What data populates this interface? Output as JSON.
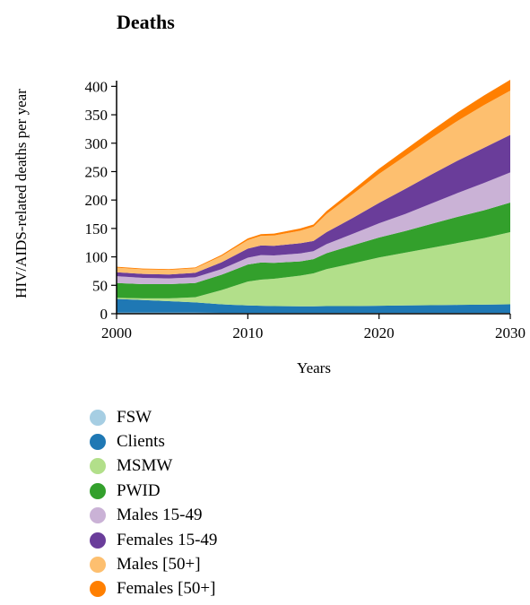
{
  "chart_data": {
    "type": "area",
    "stacked": true,
    "title": "Deaths",
    "xlabel": "Years",
    "ylabel": "HIV/AIDS-related deaths per year",
    "xlim": [
      2000,
      2030
    ],
    "ylim": [
      0,
      410
    ],
    "xticks": [
      "2000",
      "2010",
      "2020",
      "2030"
    ],
    "yticks": [
      "0",
      "50",
      "100",
      "150",
      "200",
      "250",
      "300",
      "350",
      "400"
    ],
    "x": [
      2000,
      2002,
      2004,
      2006,
      2008,
      2010,
      2011,
      2012,
      2014,
      2015,
      2016,
      2018,
      2020,
      2022,
      2024,
      2026,
      2028,
      2030
    ],
    "series": [
      {
        "name": "FSW",
        "color": "#a6cee3",
        "values": [
          2,
          2,
          2,
          2,
          1.5,
          1.5,
          1.5,
          1.5,
          1.5,
          1.5,
          1.5,
          1.5,
          1.5,
          1.5,
          1.5,
          1.5,
          1.5,
          1.5
        ]
      },
      {
        "name": "Clients",
        "color": "#1f78b4",
        "values": [
          24,
          22,
          20,
          18,
          15,
          13,
          12.5,
          12,
          11.5,
          11.5,
          12,
          12,
          12.5,
          13,
          13.5,
          14,
          14.5,
          15
        ]
      },
      {
        "name": "MSMW",
        "color": "#b2df8a",
        "values": [
          2,
          3,
          5,
          9,
          25,
          42,
          46,
          48,
          54,
          58,
          65,
          75,
          85,
          93,
          101,
          109,
          117,
          127
        ]
      },
      {
        "name": "PWID",
        "color": "#33a02c",
        "values": [
          26,
          25,
          25,
          25,
          27,
          30,
          30,
          28,
          25,
          25,
          28,
          32,
          35,
          38,
          42,
          46,
          49,
          52
        ]
      },
      {
        "name": "Males 15-49",
        "color": "#cab2d6",
        "values": [
          12,
          11,
          10,
          10,
          10,
          12,
          13,
          13,
          14,
          14,
          16,
          20,
          25,
          30,
          36,
          42,
          48,
          53
        ]
      },
      {
        "name": "Females 15-49",
        "color": "#6a3d9a",
        "values": [
          7,
          7,
          7,
          8,
          12,
          16,
          17,
          17,
          18,
          18,
          21,
          28,
          36,
          44,
          51,
          57,
          62,
          66
        ]
      },
      {
        "name": "Males [50+]",
        "color": "#fdbf6f",
        "values": [
          8,
          8,
          8,
          8,
          11,
          15,
          17,
          18,
          22,
          25,
          32,
          42,
          51,
          58,
          64,
          70,
          75,
          78
        ]
      },
      {
        "name": "Females [50+]",
        "color": "#ff7f00",
        "values": [
          1.5,
          1.5,
          1.5,
          1.5,
          2,
          3,
          3,
          3.5,
          4,
          4,
          5,
          7,
          9,
          11,
          13,
          15,
          17,
          19
        ]
      }
    ]
  }
}
